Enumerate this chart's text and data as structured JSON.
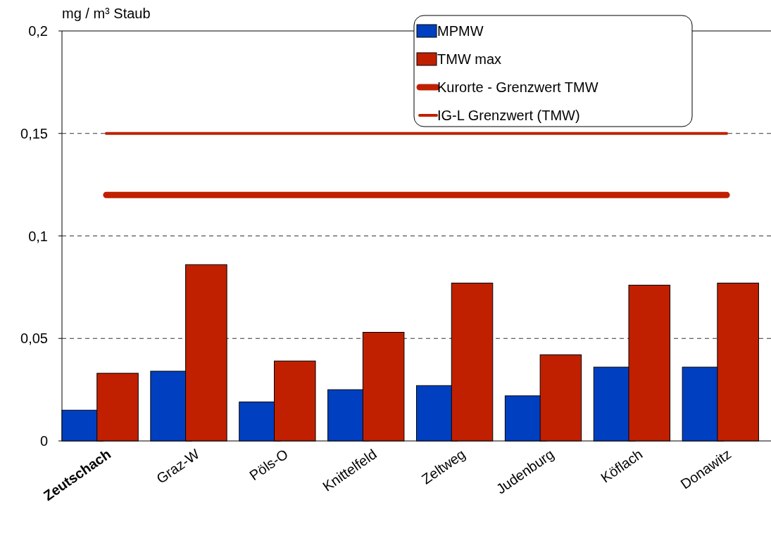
{
  "chart_data": {
    "type": "bar",
    "ylabel": "mg / m³ Staub",
    "categories": [
      "Zeutschach",
      "Graz-W",
      "Pöls-O",
      "Knittelfeld",
      "Zeltweg",
      "Judenburg",
      "Köflach",
      "Donawitz"
    ],
    "series": [
      {
        "name": "MPMW",
        "color": "#0040c0",
        "values": [
          0.015,
          0.034,
          0.019,
          0.025,
          0.027,
          0.022,
          0.036,
          0.036
        ]
      },
      {
        "name": "TMW max",
        "color": "#c02000",
        "values": [
          0.033,
          0.086,
          0.039,
          0.053,
          0.077,
          0.042,
          0.076,
          0.077
        ]
      },
      {
        "name": "Kurorte - Grenzwert TMW",
        "type": "line",
        "color": "#c02000",
        "values": [
          0.12,
          0.12,
          0.12,
          0.12,
          0.12,
          0.12,
          0.12,
          0.12
        ]
      },
      {
        "name": "IG-L Grenzwert (TMW)",
        "type": "line",
        "color": "#c02000",
        "values": [
          0.15,
          0.15,
          0.15,
          0.15,
          0.15,
          0.15,
          0.15,
          0.15
        ]
      }
    ],
    "ylim": [
      0,
      0.2
    ],
    "yticks": [
      0,
      {
        "value": 0.05,
        "label": "0,05"
      },
      {
        "value": 0.1,
        "label": "0,1"
      },
      {
        "value": 0.15,
        "label": "0,15"
      },
      {
        "value": 0.2,
        "label": "0,2"
      }
    ],
    "grid": "y",
    "legend": "top right"
  }
}
